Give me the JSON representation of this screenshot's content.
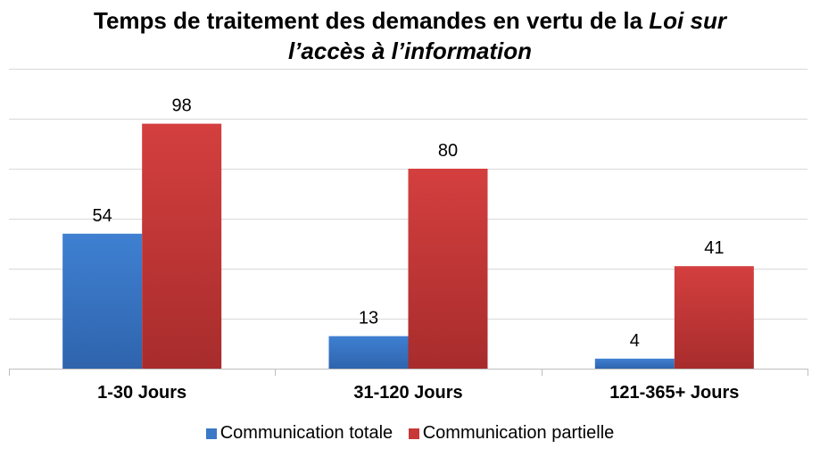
{
  "chart_data": {
    "type": "bar",
    "title_main": "Temps de traitement des demandes en vertu de la ",
    "title_italic_1": "Loi sur",
    "title_italic_2": "l’accès à l’information",
    "categories": [
      "1-30 Jours",
      "31-120 Jours",
      "121-365+ Jours"
    ],
    "series": [
      {
        "name": "Communication totale",
        "values": [
          54,
          13,
          4
        ],
        "color": "#3a78c8"
      },
      {
        "name": "Communication partielle",
        "values": [
          98,
          80,
          41
        ],
        "color": "#c83838"
      }
    ],
    "ylim": [
      0,
      120
    ],
    "gridlines": true,
    "legend_position": "bottom",
    "xlabel": "",
    "ylabel": ""
  }
}
